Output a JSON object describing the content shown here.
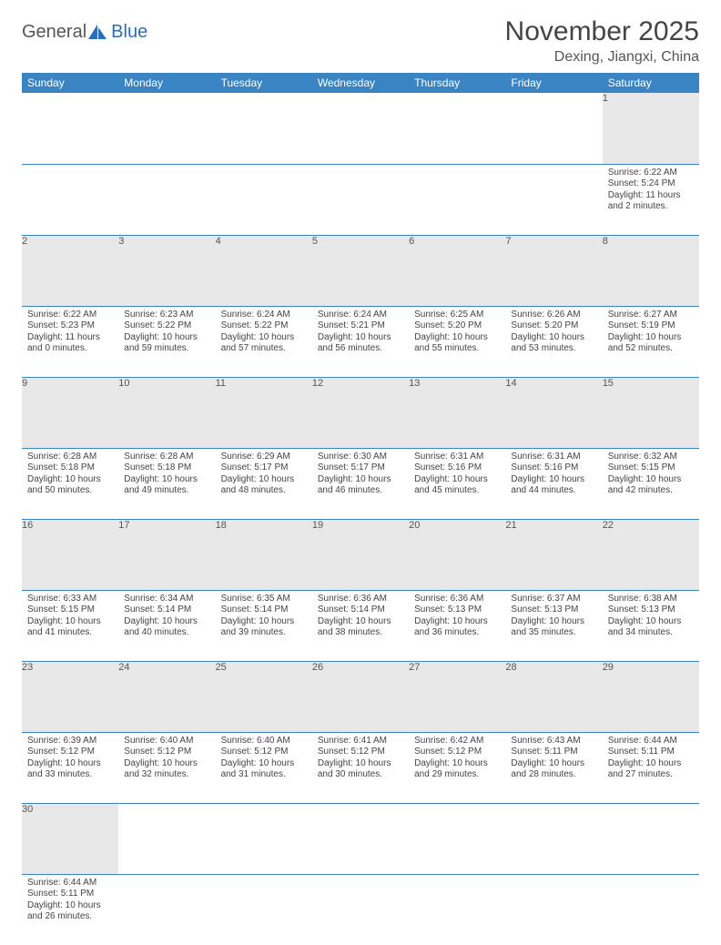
{
  "logo": {
    "part1": "General",
    "part2": "Blue"
  },
  "title": "November 2025",
  "location": "Dexing, Jiangxi, China",
  "colors": {
    "header_bg": "#3b84c4",
    "header_text": "#ffffff",
    "daynum_bg": "#e8e8e8",
    "border": "#3b84c4",
    "logo_gray": "#555555",
    "logo_blue": "#2a6fb5"
  },
  "weekdays": [
    "Sunday",
    "Monday",
    "Tuesday",
    "Wednesday",
    "Thursday",
    "Friday",
    "Saturday"
  ],
  "labels": {
    "sunrise": "Sunrise:",
    "sunset": "Sunset:",
    "daylight": "Daylight:"
  },
  "days": {
    "1": {
      "sunrise": "6:22 AM",
      "sunset": "5:24 PM",
      "daylight": "11 hours and 2 minutes."
    },
    "2": {
      "sunrise": "6:22 AM",
      "sunset": "5:23 PM",
      "daylight": "11 hours and 0 minutes."
    },
    "3": {
      "sunrise": "6:23 AM",
      "sunset": "5:22 PM",
      "daylight": "10 hours and 59 minutes."
    },
    "4": {
      "sunrise": "6:24 AM",
      "sunset": "5:22 PM",
      "daylight": "10 hours and 57 minutes."
    },
    "5": {
      "sunrise": "6:24 AM",
      "sunset": "5:21 PM",
      "daylight": "10 hours and 56 minutes."
    },
    "6": {
      "sunrise": "6:25 AM",
      "sunset": "5:20 PM",
      "daylight": "10 hours and 55 minutes."
    },
    "7": {
      "sunrise": "6:26 AM",
      "sunset": "5:20 PM",
      "daylight": "10 hours and 53 minutes."
    },
    "8": {
      "sunrise": "6:27 AM",
      "sunset": "5:19 PM",
      "daylight": "10 hours and 52 minutes."
    },
    "9": {
      "sunrise": "6:28 AM",
      "sunset": "5:18 PM",
      "daylight": "10 hours and 50 minutes."
    },
    "10": {
      "sunrise": "6:28 AM",
      "sunset": "5:18 PM",
      "daylight": "10 hours and 49 minutes."
    },
    "11": {
      "sunrise": "6:29 AM",
      "sunset": "5:17 PM",
      "daylight": "10 hours and 48 minutes."
    },
    "12": {
      "sunrise": "6:30 AM",
      "sunset": "5:17 PM",
      "daylight": "10 hours and 46 minutes."
    },
    "13": {
      "sunrise": "6:31 AM",
      "sunset": "5:16 PM",
      "daylight": "10 hours and 45 minutes."
    },
    "14": {
      "sunrise": "6:31 AM",
      "sunset": "5:16 PM",
      "daylight": "10 hours and 44 minutes."
    },
    "15": {
      "sunrise": "6:32 AM",
      "sunset": "5:15 PM",
      "daylight": "10 hours and 42 minutes."
    },
    "16": {
      "sunrise": "6:33 AM",
      "sunset": "5:15 PM",
      "daylight": "10 hours and 41 minutes."
    },
    "17": {
      "sunrise": "6:34 AM",
      "sunset": "5:14 PM",
      "daylight": "10 hours and 40 minutes."
    },
    "18": {
      "sunrise": "6:35 AM",
      "sunset": "5:14 PM",
      "daylight": "10 hours and 39 minutes."
    },
    "19": {
      "sunrise": "6:36 AM",
      "sunset": "5:14 PM",
      "daylight": "10 hours and 38 minutes."
    },
    "20": {
      "sunrise": "6:36 AM",
      "sunset": "5:13 PM",
      "daylight": "10 hours and 36 minutes."
    },
    "21": {
      "sunrise": "6:37 AM",
      "sunset": "5:13 PM",
      "daylight": "10 hours and 35 minutes."
    },
    "22": {
      "sunrise": "6:38 AM",
      "sunset": "5:13 PM",
      "daylight": "10 hours and 34 minutes."
    },
    "23": {
      "sunrise": "6:39 AM",
      "sunset": "5:12 PM",
      "daylight": "10 hours and 33 minutes."
    },
    "24": {
      "sunrise": "6:40 AM",
      "sunset": "5:12 PM",
      "daylight": "10 hours and 32 minutes."
    },
    "25": {
      "sunrise": "6:40 AM",
      "sunset": "5:12 PM",
      "daylight": "10 hours and 31 minutes."
    },
    "26": {
      "sunrise": "6:41 AM",
      "sunset": "5:12 PM",
      "daylight": "10 hours and 30 minutes."
    },
    "27": {
      "sunrise": "6:42 AM",
      "sunset": "5:12 PM",
      "daylight": "10 hours and 29 minutes."
    },
    "28": {
      "sunrise": "6:43 AM",
      "sunset": "5:11 PM",
      "daylight": "10 hours and 28 minutes."
    },
    "29": {
      "sunrise": "6:44 AM",
      "sunset": "5:11 PM",
      "daylight": "10 hours and 27 minutes."
    },
    "30": {
      "sunrise": "6:44 AM",
      "sunset": "5:11 PM",
      "daylight": "10 hours and 26 minutes."
    }
  },
  "grid": [
    [
      null,
      null,
      null,
      null,
      null,
      null,
      "1"
    ],
    [
      "2",
      "3",
      "4",
      "5",
      "6",
      "7",
      "8"
    ],
    [
      "9",
      "10",
      "11",
      "12",
      "13",
      "14",
      "15"
    ],
    [
      "16",
      "17",
      "18",
      "19",
      "20",
      "21",
      "22"
    ],
    [
      "23",
      "24",
      "25",
      "26",
      "27",
      "28",
      "29"
    ],
    [
      "30",
      null,
      null,
      null,
      null,
      null,
      null
    ]
  ]
}
